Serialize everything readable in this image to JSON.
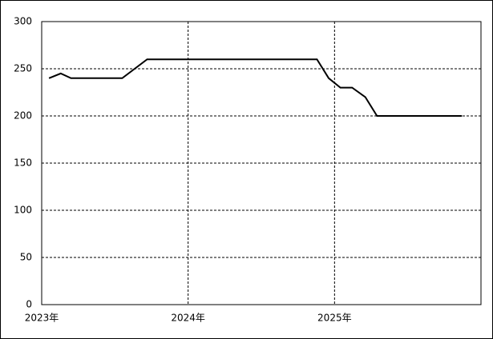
{
  "chart_data": {
    "type": "line",
    "x": [
      2023.05,
      2023.13,
      2023.2,
      2023.55,
      2023.72,
      2024.88,
      2024.96,
      2025.04,
      2025.12,
      2025.21,
      2025.29,
      2025.87
    ],
    "series": [
      {
        "color": "#000000",
        "values": [
          240,
          245,
          240,
          240,
          260,
          260,
          240,
          230,
          230,
          220,
          200,
          200
        ]
      }
    ],
    "xlim": [
      2023,
      2026
    ],
    "xticks": [
      {
        "value": 2023,
        "label": "2023年"
      },
      {
        "value": 2024,
        "label": "2024年"
      },
      {
        "value": 2025,
        "label": "2025年"
      }
    ],
    "ylim": [
      0,
      300
    ],
    "yticks": [
      0,
      50,
      100,
      150,
      200,
      250,
      300
    ],
    "grid": true
  }
}
